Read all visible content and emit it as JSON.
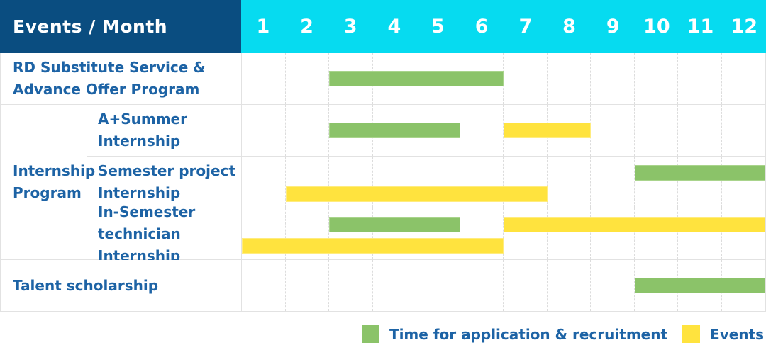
{
  "header": {
    "title": "Events / Month",
    "months": [
      "1",
      "2",
      "3",
      "4",
      "5",
      "6",
      "7",
      "8",
      "9",
      "10",
      "11",
      "12"
    ]
  },
  "group_cell": {
    "label": "Internship Program",
    "lines": [
      "Internship",
      "Program"
    ]
  },
  "legend": [
    {
      "key": "green",
      "label": "Time for application & recruitment",
      "color": "#8BC369"
    },
    {
      "key": "yellow",
      "label": "Events",
      "color": "#FFE33E"
    }
  ],
  "colors": {
    "header_navy": "#0A4D80",
    "header_cyan": "#06DBF0",
    "bar_green": "#8BC369",
    "bar_yellow": "#FFE33E",
    "label_blue": "#1D63A5",
    "grid_line": "#E2E2E2"
  },
  "chart_data": {
    "type": "bar",
    "subtype": "gantt-timeline",
    "title": "Events / Month",
    "x_axis": {
      "label": "Month",
      "categories": [
        "1",
        "2",
        "3",
        "4",
        "5",
        "6",
        "7",
        "8",
        "9",
        "10",
        "11",
        "12"
      ],
      "range": [
        1,
        12
      ]
    },
    "grid": "dashed-vertical-month-lines",
    "legend_position": "bottom-right",
    "series": [
      {
        "name": "Time for application & recruitment",
        "color": "#8BC369"
      },
      {
        "name": "Events",
        "color": "#FFE33E"
      }
    ],
    "rows": [
      {
        "label": "RD Substitute Service & Advance Offer Program",
        "label_lines": [
          "RD Substitute Service &",
          "Advance Offer Program"
        ],
        "group": null,
        "bars": [
          {
            "series": "Time for application & recruitment",
            "color_key": "green",
            "start_month": 3,
            "end_month": 6,
            "lane": "single"
          }
        ]
      },
      {
        "label": "A+Summer Internship",
        "label_lines": [
          "A+Summer",
          "Internship"
        ],
        "group": "Internship Program",
        "bars": [
          {
            "series": "Time for application & recruitment",
            "color_key": "green",
            "start_month": 3,
            "end_month": 5,
            "lane": "single"
          },
          {
            "series": "Events",
            "color_key": "yellow",
            "start_month": 7,
            "end_month": 8,
            "lane": "single"
          }
        ]
      },
      {
        "label": "Semester project Internship",
        "label_lines": [
          "Semester project",
          "Internship"
        ],
        "group": "Internship Program",
        "bars": [
          {
            "series": "Time for application & recruitment",
            "color_key": "green",
            "start_month": 10,
            "end_month": 12,
            "lane": "top"
          },
          {
            "series": "Events",
            "color_key": "yellow",
            "start_month": 2,
            "end_month": 7,
            "lane": "bottom"
          }
        ]
      },
      {
        "label": "In-Semester technician Internship",
        "label_lines": [
          "In-Semester",
          "technician Internship"
        ],
        "group": "Internship Program",
        "bars": [
          {
            "series": "Time for application & recruitment",
            "color_key": "green",
            "start_month": 3,
            "end_month": 5,
            "lane": "top"
          },
          {
            "series": "Events",
            "color_key": "yellow",
            "start_month": 7,
            "end_month": 12,
            "lane": "top"
          },
          {
            "series": "Events",
            "color_key": "yellow",
            "start_month": 1,
            "end_month": 6,
            "lane": "bottom"
          }
        ]
      },
      {
        "label": "Talent scholarship",
        "label_lines": [
          "Talent scholarship"
        ],
        "group": null,
        "bars": [
          {
            "series": "Time for application & recruitment",
            "color_key": "green",
            "start_month": 10,
            "end_month": 12,
            "lane": "single"
          }
        ]
      }
    ]
  }
}
